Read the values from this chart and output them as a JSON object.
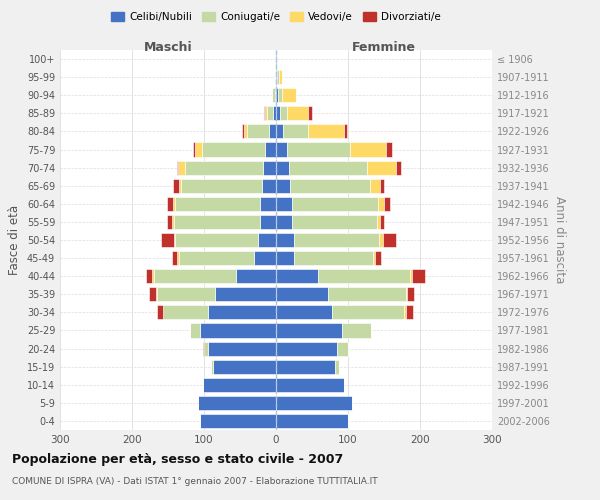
{
  "age_groups": [
    "0-4",
    "5-9",
    "10-14",
    "15-19",
    "20-24",
    "25-29",
    "30-34",
    "35-39",
    "40-44",
    "45-49",
    "50-54",
    "55-59",
    "60-64",
    "65-69",
    "70-74",
    "75-79",
    "80-84",
    "85-89",
    "90-94",
    "95-99",
    "100+"
  ],
  "birth_years": [
    "2002-2006",
    "1997-2001",
    "1992-1996",
    "1987-1991",
    "1982-1986",
    "1977-1981",
    "1972-1976",
    "1967-1971",
    "1962-1966",
    "1957-1961",
    "1952-1956",
    "1947-1951",
    "1942-1946",
    "1937-1941",
    "1932-1936",
    "1927-1931",
    "1922-1926",
    "1917-1921",
    "1912-1916",
    "1907-1911",
    "≤ 1906"
  ],
  "males": {
    "celibe": [
      105,
      108,
      102,
      88,
      95,
      105,
      95,
      85,
      55,
      30,
      25,
      22,
      22,
      20,
      18,
      15,
      10,
      4,
      2,
      1,
      1
    ],
    "coniugato": [
      0,
      0,
      0,
      2,
      5,
      15,
      62,
      80,
      115,
      105,
      115,
      120,
      118,
      112,
      108,
      88,
      30,
      8,
      3,
      0,
      0
    ],
    "vedovo": [
      0,
      0,
      0,
      0,
      0,
      0,
      0,
      1,
      2,
      2,
      2,
      2,
      3,
      3,
      10,
      10,
      5,
      3,
      0,
      0,
      0
    ],
    "divorziato": [
      0,
      0,
      0,
      0,
      2,
      0,
      8,
      10,
      8,
      8,
      18,
      8,
      8,
      8,
      2,
      2,
      2,
      2,
      0,
      0,
      0
    ]
  },
  "females": {
    "nubile": [
      100,
      105,
      95,
      82,
      85,
      92,
      78,
      72,
      58,
      25,
      25,
      22,
      22,
      20,
      18,
      15,
      10,
      5,
      3,
      2,
      1
    ],
    "coniugata": [
      0,
      0,
      0,
      5,
      15,
      40,
      100,
      108,
      128,
      110,
      118,
      118,
      120,
      110,
      108,
      88,
      35,
      10,
      5,
      2,
      0
    ],
    "vedova": [
      0,
      0,
      0,
      0,
      0,
      0,
      2,
      2,
      3,
      3,
      5,
      5,
      8,
      15,
      40,
      50,
      50,
      30,
      20,
      5,
      0
    ],
    "divorziata": [
      0,
      0,
      0,
      0,
      0,
      0,
      10,
      10,
      18,
      8,
      18,
      5,
      8,
      5,
      8,
      8,
      3,
      5,
      0,
      0,
      0
    ]
  },
  "colors": {
    "celibe": "#4472C4",
    "coniugato": "#C5D9A5",
    "vedovo": "#FFD966",
    "divorziato": "#C0312B"
  },
  "legend_labels": [
    "Celibi/Nubili",
    "Coniugati/e",
    "Vedovi/e",
    "Divorziati/e"
  ],
  "xlim": 300,
  "title": "Popolazione per età, sesso e stato civile - 2007",
  "subtitle": "COMUNE DI ISPRA (VA) - Dati ISTAT 1° gennaio 2007 - Elaborazione TUTTITALIA.IT",
  "ylabel": "Fasce di età",
  "right_ylabel": "Anni di nascita",
  "maschi_label": "Maschi",
  "femmine_label": "Femmine",
  "bg_color": "#f0f0f0",
  "plot_bg": "#ffffff"
}
